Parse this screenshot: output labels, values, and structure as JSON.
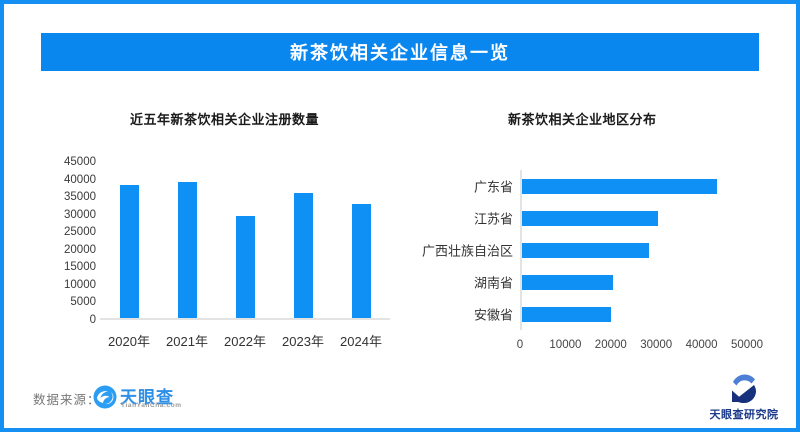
{
  "header": {
    "title": "新茶饮相关企业信息一览",
    "bg_color": "#0a87ef",
    "text_color": "#ffffff"
  },
  "chart_data": [
    {
      "type": "bar",
      "title": "近五年新茶饮相关企业注册数量",
      "categories": [
        "2020年",
        "2021年",
        "2022年",
        "2023年",
        "2024年"
      ],
      "values": [
        37900,
        38800,
        29100,
        35600,
        32600
      ],
      "ylim": [
        0,
        45000
      ],
      "yticks": [
        45000,
        40000,
        35000,
        30000,
        25000,
        20000,
        15000,
        10000,
        5000,
        0
      ],
      "bar_color": "#0f90f5",
      "grid": false,
      "legend": false
    },
    {
      "type": "bar-horizontal",
      "title": "新茶饮相关企业地区分布",
      "categories": [
        "广东省",
        "江苏省",
        "广西壮族自治区",
        "湖南省",
        "安徽省"
      ],
      "values": [
        42900,
        29900,
        27900,
        20000,
        19700
      ],
      "xlim": [
        0,
        50000
      ],
      "xticks": [
        0,
        10000,
        20000,
        30000,
        40000,
        50000
      ],
      "bar_color": "#0f90f5",
      "grid": false,
      "legend": false
    }
  ],
  "footer": {
    "source_label": "数据来源：",
    "tyc_logo_text": "天眼查",
    "tyc_logo_sub": "TianYanCha.com",
    "research_logo_text": "天眼查研究院"
  },
  "colors": {
    "border_blue": "#1590f2",
    "header_blue": "#0a87ef",
    "bar_blue": "#0f90f5",
    "axis_line": "#e3e3e3"
  }
}
